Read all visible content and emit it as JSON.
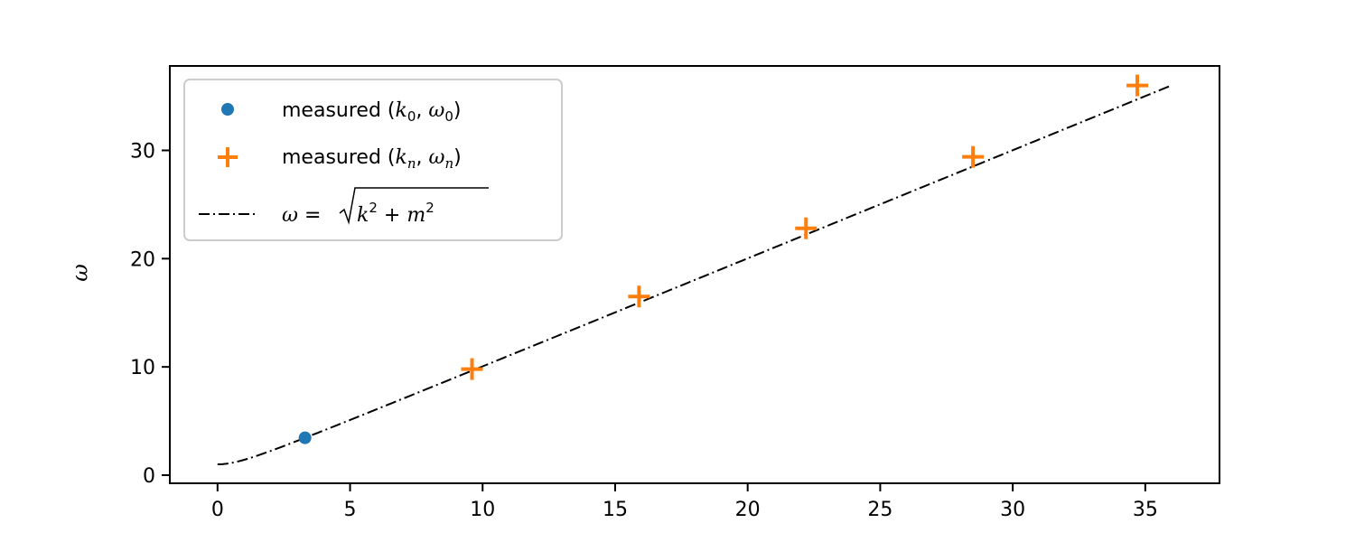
{
  "chart_data": {
    "type": "scatter",
    "title": "",
    "xlabel": "",
    "ylabel": "ω",
    "xlim": [
      -1.8,
      37.8
    ],
    "ylim": [
      -0.75,
      37.8
    ],
    "xticks": [
      "0",
      "5",
      "10",
      "15",
      "20",
      "25",
      "30",
      "35"
    ],
    "yticks": [
      "0",
      "10",
      "20",
      "30"
    ],
    "grid": false,
    "legend_position": "upper-left",
    "series": [
      {
        "name": "measured (k0, ω0)",
        "kind": "scatter-dot",
        "color": "#1f77b4",
        "points": [
          [
            3.3,
            3.45
          ]
        ]
      },
      {
        "name": "measured (kn, ωn)",
        "kind": "scatter-plus",
        "color": "#ff7f0e",
        "points": [
          [
            9.6,
            9.8
          ],
          [
            15.9,
            16.5
          ],
          [
            22.2,
            22.8
          ],
          [
            28.5,
            29.4
          ],
          [
            34.7,
            36.0
          ]
        ]
      },
      {
        "name": "ω = √(k² + m²)",
        "kind": "line-dashdot",
        "color": "#000000",
        "m": 1.0,
        "k_range": [
          0,
          36
        ]
      }
    ]
  }
}
